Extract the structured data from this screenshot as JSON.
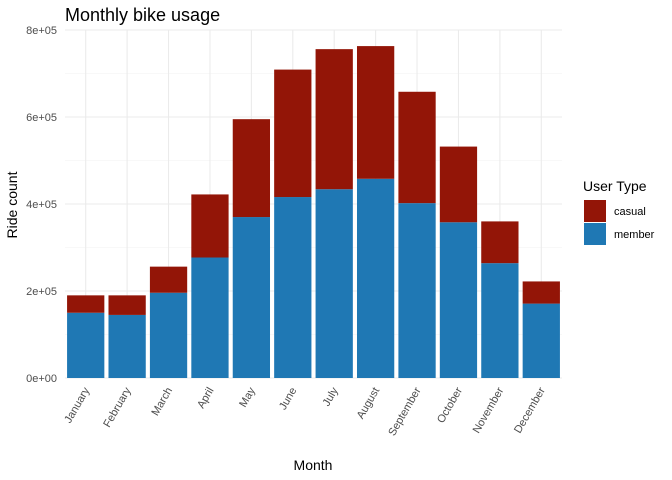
{
  "chart_data": {
    "type": "bar",
    "stacked": true,
    "title": "Monthly bike usage",
    "xlabel": "Month",
    "ylabel": "Ride count",
    "categories": [
      "January",
      "February",
      "March",
      "April",
      "May",
      "June",
      "July",
      "August",
      "September",
      "October",
      "November",
      "December"
    ],
    "series": [
      {
        "name": "member",
        "color": "#1f78b4",
        "values": [
          150000,
          145000,
          196000,
          277000,
          370000,
          416000,
          434000,
          458000,
          402000,
          358000,
          264000,
          171000
        ]
      },
      {
        "name": "casual",
        "color": "#931507",
        "values": [
          40000,
          45000,
          60000,
          145000,
          225000,
          293000,
          322000,
          305000,
          256000,
          174000,
          96000,
          51000
        ]
      }
    ],
    "ylim": [
      0,
      800000
    ],
    "yticks": [
      0,
      200000,
      400000,
      600000,
      800000
    ],
    "ytick_labels": [
      "0e+00",
      "2e+05",
      "4e+05",
      "6e+05",
      "8e+05"
    ],
    "grid": true,
    "legend": {
      "title": "User Type",
      "placement": "right",
      "items": [
        {
          "label": "casual",
          "color": "#931507"
        },
        {
          "label": "member",
          "color": "#1f78b4"
        }
      ]
    }
  }
}
